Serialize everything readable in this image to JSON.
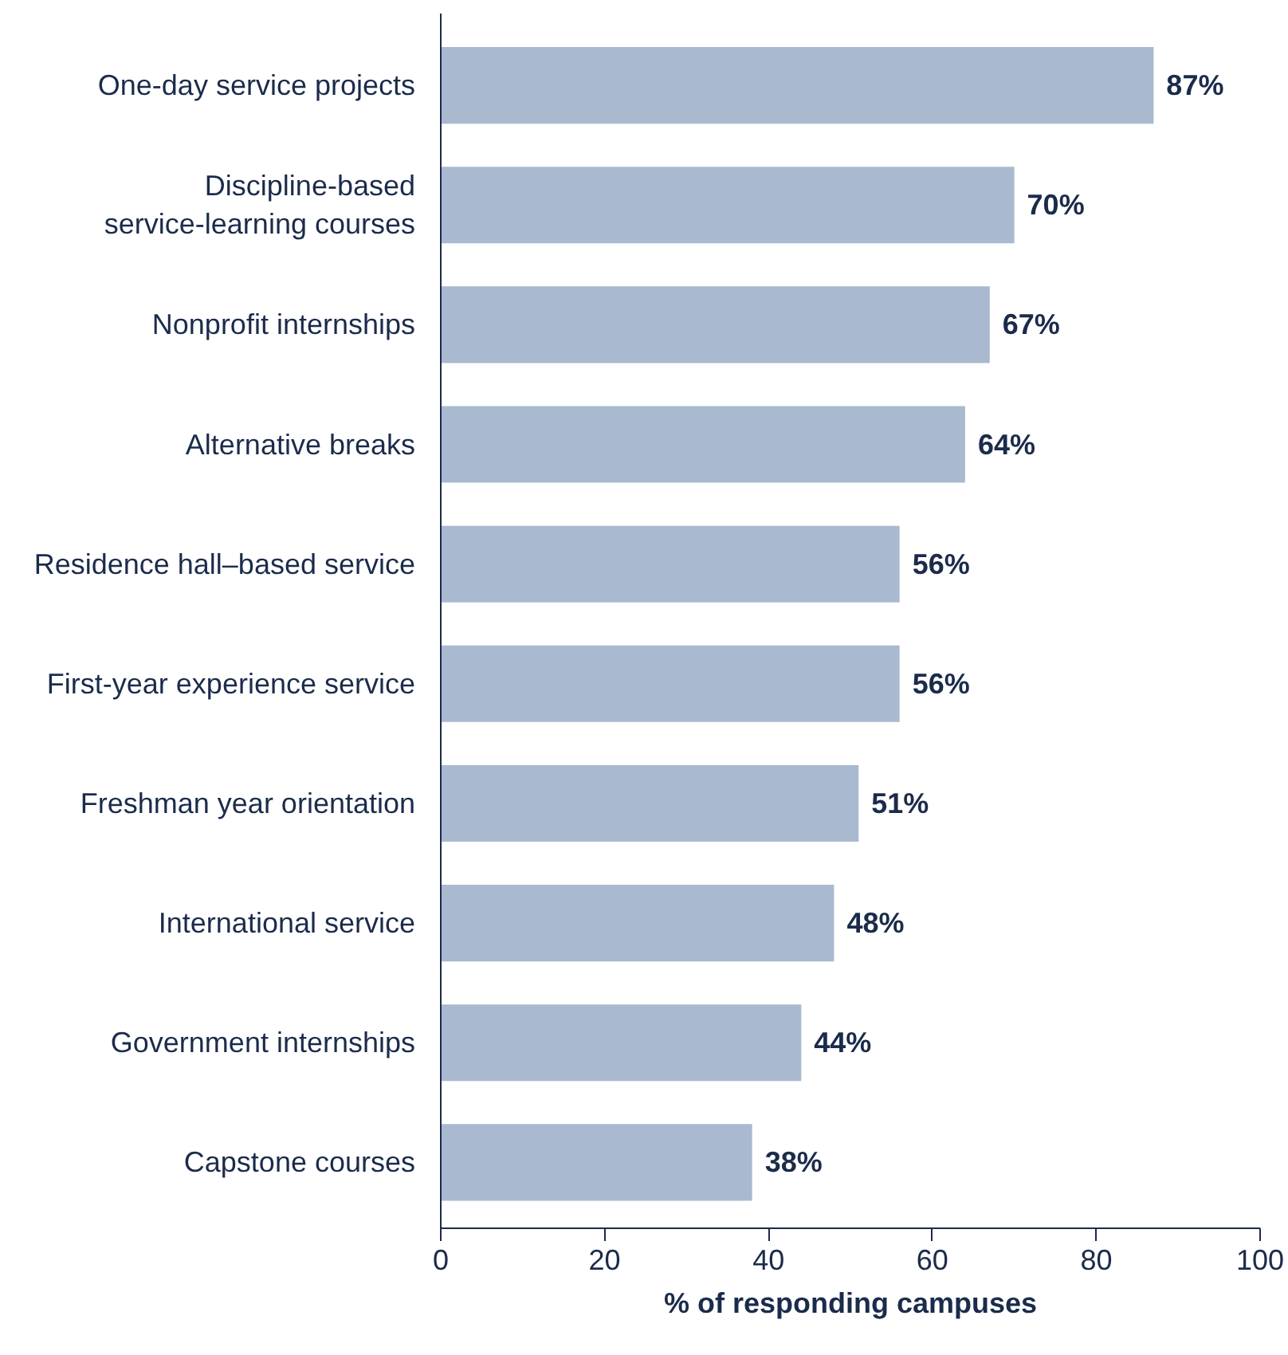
{
  "chart_data": {
    "type": "bar",
    "orientation": "horizontal",
    "xlabel": "% of responding campuses",
    "categories": [
      "One-day service projects",
      "Discipline-based\nservice-learning courses",
      "Nonprofit internships",
      "Alternative breaks",
      "Residence hall–based service",
      "First-year experience service",
      "Freshman year orientation",
      "International service",
      "Government internships",
      "Capstone courses"
    ],
    "values": [
      87,
      70,
      67,
      64,
      56,
      56,
      51,
      48,
      44,
      38
    ],
    "value_labels": [
      "87%",
      "70%",
      "67%",
      "64%",
      "56%",
      "56%",
      "51%",
      "48%",
      "44%",
      "38%"
    ],
    "color": "#a9b9cf",
    "xlim": [
      0,
      100
    ],
    "xticks": [
      0,
      20,
      40,
      60,
      80,
      100
    ],
    "grid": false
  }
}
